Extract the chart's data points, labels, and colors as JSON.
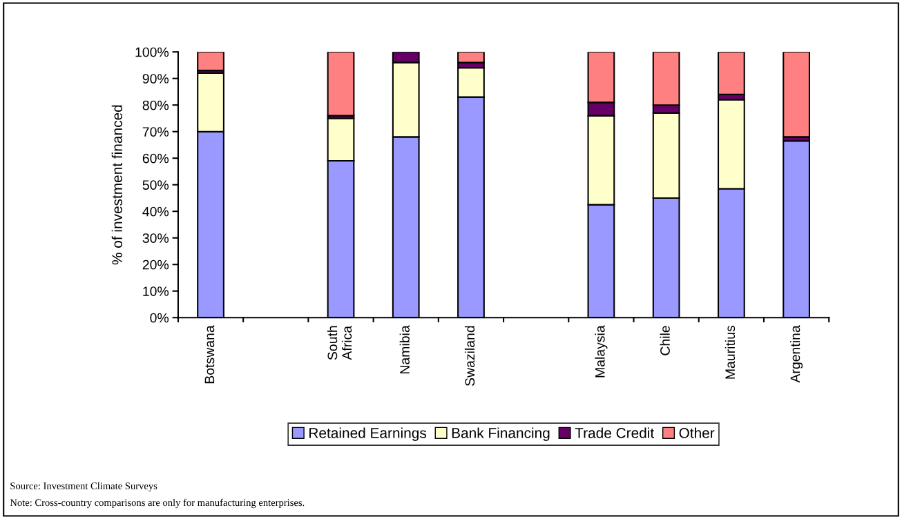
{
  "chart_data": {
    "type": "bar",
    "stacked": true,
    "ylabel": "% of investment financed",
    "categories": [
      "Botswana",
      null,
      "South\nAfrica",
      "Namibia",
      "Swaziland",
      null,
      "Malaysia",
      "Chile",
      "Mauritius",
      "Argentina"
    ],
    "series": [
      {
        "name": "Retained Earnings",
        "color": "#9999ff",
        "values": [
          70,
          null,
          59,
          68,
          83,
          null,
          42.5,
          45,
          48.5,
          66.5
        ]
      },
      {
        "name": "Bank Financing",
        "color": "#ffffcc",
        "values": [
          22,
          null,
          16,
          28,
          11,
          null,
          33.5,
          32,
          33.5,
          0
        ]
      },
      {
        "name": "Trade Credit",
        "color": "#660066",
        "values": [
          1,
          null,
          1,
          4,
          2,
          null,
          5,
          3,
          2,
          1.5
        ]
      },
      {
        "name": "Other",
        "color": "#ff8080",
        "values": [
          7,
          null,
          24,
          0,
          4,
          null,
          19,
          20,
          16,
          32
        ]
      }
    ],
    "ylim": [
      0,
      100
    ],
    "yticks": [
      {
        "value": 0,
        "label": "0%"
      },
      {
        "value": 10,
        "label": "10%"
      },
      {
        "value": 20,
        "label": "20%"
      },
      {
        "value": 30,
        "label": "30%"
      },
      {
        "value": 40,
        "label": "40%"
      },
      {
        "value": 50,
        "label": "50%"
      },
      {
        "value": 60,
        "label": "60%"
      },
      {
        "value": 70,
        "label": "70%"
      },
      {
        "value": 80,
        "label": "80%"
      },
      {
        "value": 90,
        "label": "90%"
      },
      {
        "value": 100,
        "label": "100%"
      }
    ],
    "grid": false,
    "legend": "bottom",
    "annotations": [
      "Source: Investment Climate Surveys",
      "Note: Cross-country comparisons are only for manufacturing enterprises."
    ]
  }
}
